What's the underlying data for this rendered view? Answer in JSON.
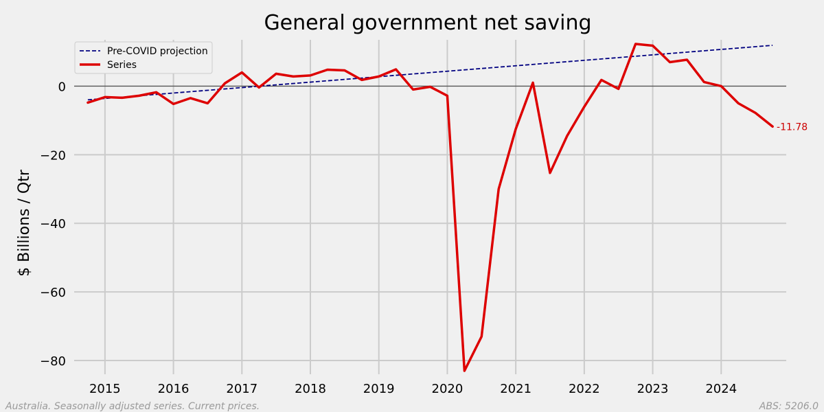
{
  "chart_data": {
    "type": "line",
    "title": "General government net saving",
    "xlabel": "",
    "ylabel": "$ Billions / Qtr",
    "xlim": [
      2014.55,
      2024.95
    ],
    "ylim": [
      -84,
      13.5
    ],
    "x_ticks": [
      2015,
      2016,
      2017,
      2018,
      2019,
      2020,
      2021,
      2022,
      2023,
      2024
    ],
    "y_ticks": [
      0,
      -20,
      -40,
      -60,
      -80
    ],
    "y_tick_labels": [
      "0",
      "−20",
      "−40",
      "−60",
      "−80"
    ],
    "zero_line": true,
    "grid": true,
    "legend_position": "top-left",
    "series": [
      {
        "name": "Pre-COVID projection",
        "color": "#000080",
        "style": "dashed",
        "x": [
          2014.75,
          2024.75
        ],
        "values": [
          -4.0,
          11.9
        ]
      },
      {
        "name": "Series",
        "color": "#dd0000",
        "style": "solid",
        "x": [
          2014.75,
          2015.0,
          2015.25,
          2015.5,
          2015.75,
          2016.0,
          2016.25,
          2016.5,
          2016.75,
          2017.0,
          2017.25,
          2017.5,
          2017.75,
          2018.0,
          2018.25,
          2018.5,
          2018.75,
          2019.0,
          2019.25,
          2019.5,
          2019.75,
          2020.0,
          2020.25,
          2020.5,
          2020.75,
          2021.0,
          2021.25,
          2021.5,
          2021.75,
          2022.0,
          2022.25,
          2022.5,
          2022.75,
          2023.0,
          2023.25,
          2023.5,
          2023.75,
          2024.0,
          2024.25,
          2024.5,
          2024.75
        ],
        "values": [
          -4.8,
          -3.2,
          -3.4,
          -2.8,
          -1.8,
          -5.2,
          -3.5,
          -5.0,
          0.8,
          4.0,
          -0.4,
          3.6,
          2.8,
          3.1,
          4.8,
          4.6,
          1.8,
          2.8,
          4.9,
          -1.0,
          -0.2,
          -2.8,
          -83.0,
          -73.0,
          -30.0,
          -12.5,
          1.0,
          -25.3,
          -14.5,
          -6.0,
          1.8,
          -0.8,
          12.3,
          11.8,
          7.0,
          7.7,
          1.2,
          0.0,
          -5.0,
          -7.8,
          -11.78
        ]
      }
    ],
    "end_label": "-11.78",
    "end_label_color": "#cc0000",
    "footnote_left": "Australia. Seasonally adjusted series. Current prices.",
    "footnote_right": "ABS: 5206.0"
  }
}
